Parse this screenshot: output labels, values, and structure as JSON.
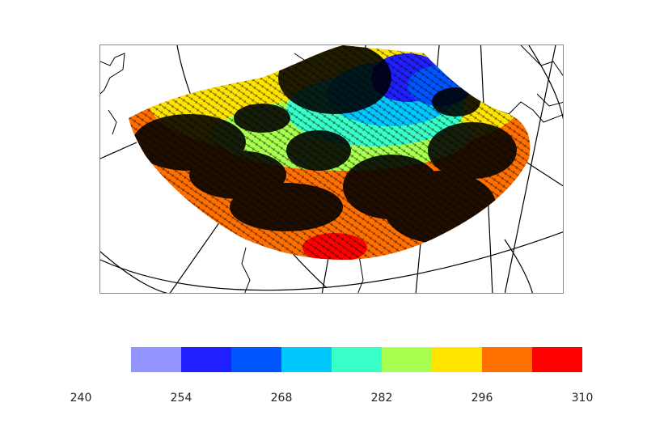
{
  "colorbar": {
    "colors": [
      "#9494ff",
      "#1f1fff",
      "#0055ff",
      "#00c8ff",
      "#38ffc8",
      "#a8ff50",
      "#ffe400",
      "#ff7000",
      "#ff0000"
    ],
    "tick_labels": [
      "240",
      "254",
      "268",
      "282",
      "296",
      "310"
    ],
    "tick_values": [
      240,
      254,
      268,
      282,
      296,
      310
    ]
  },
  "map": {
    "projection": "polar-stereographic",
    "field_colors": {
      "very_cold": "#1f1fff",
      "cold": "#00c8ff",
      "cool": "#38ffc8",
      "mild": "#a8ff50",
      "warm": "#ffe400",
      "hot": "#ff7000",
      "very_hot": "#ff0000",
      "vectors": "#000000"
    }
  }
}
